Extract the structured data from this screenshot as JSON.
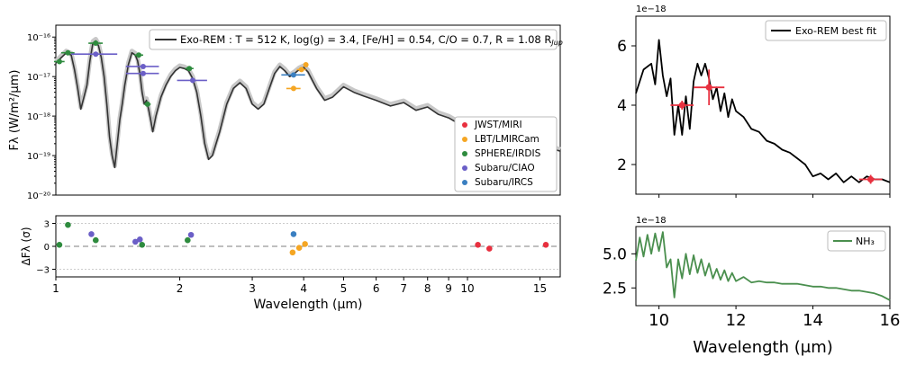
{
  "chart_data": [
    {
      "type": "line",
      "panel": "main-spectrum",
      "ylabel": "Fλ (W/m²/μm)",
      "yscale": "log",
      "xscale": "log",
      "xlim": [
        1,
        16.8
      ],
      "ylim": [
        1e-20,
        2e-16
      ],
      "yticklabels": [
        "10⁻¹⁶",
        "10⁻¹⁷",
        "10⁻¹⁸",
        "10⁻¹⁹",
        "10⁻²⁰"
      ],
      "yticks": [
        1e-16,
        1e-17,
        1e-18,
        1e-19,
        1e-20
      ],
      "model_legend": "Exo-REM : T = 512 K, log(g) = 3.4, [Fe/H] = 0.54, C/O = 0.7, R = 1.08 R",
      "model_legend_sub": "Jup",
      "legend": [
        "JWST/MIRI",
        "LBT/LMIRCam",
        "SPHERE/IRDIS",
        "Subaru/CIAO",
        "Subaru/IRCS"
      ],
      "legend_colors": [
        "#e8303f",
        "#f5a623",
        "#2e8b3e",
        "#6b5fc7",
        "#3a7fc1"
      ],
      "model_x": [
        1.0,
        1.03,
        1.06,
        1.09,
        1.11,
        1.13,
        1.15,
        1.17,
        1.19,
        1.21,
        1.23,
        1.25,
        1.27,
        1.29,
        1.31,
        1.33,
        1.35,
        1.37,
        1.39,
        1.41,
        1.43,
        1.45,
        1.47,
        1.5,
        1.53,
        1.56,
        1.58,
        1.6,
        1.62,
        1.64,
        1.66,
        1.68,
        1.7,
        1.72,
        1.75,
        1.8,
        1.85,
        1.9,
        1.95,
        2.0,
        2.05,
        2.1,
        2.15,
        2.2,
        2.25,
        2.3,
        2.35,
        2.4,
        2.5,
        2.6,
        2.7,
        2.8,
        2.9,
        3.0,
        3.1,
        3.2,
        3.3,
        3.4,
        3.5,
        3.6,
        3.7,
        3.8,
        3.9,
        4.0,
        4.1,
        4.2,
        4.3,
        4.5,
        4.7,
        5.0,
        5.3,
        5.6,
        6.0,
        6.5,
        7.0,
        7.5,
        8.0,
        8.5,
        9.0,
        9.5,
        10.0,
        10.5,
        11.0,
        11.5,
        12.0,
        13.0,
        14.0,
        15.0,
        16.0,
        16.8
      ],
      "model_y": [
        2.2e-17,
        3e-17,
        4e-17,
        3.5e-17,
        1.5e-17,
        5e-18,
        1.5e-18,
        3e-18,
        6e-18,
        2.5e-17,
        7e-17,
        8e-17,
        6e-17,
        3e-17,
        1e-17,
        2e-18,
        3e-19,
        1e-19,
        5e-20,
        2e-19,
        8e-19,
        2e-18,
        6e-18,
        2e-17,
        4e-17,
        3.5e-17,
        2.5e-17,
        1.2e-17,
        4e-18,
        2e-18,
        2.5e-18,
        1.5e-18,
        8e-19,
        4e-19,
        1e-18,
        3e-18,
        6e-18,
        1e-17,
        1.4e-17,
        1.7e-17,
        1.6e-17,
        1.4e-17,
        9e-18,
        4e-18,
        1e-18,
        2e-19,
        8e-20,
        1e-19,
        4e-19,
        2e-18,
        5e-18,
        7e-18,
        5e-18,
        2e-18,
        1.5e-18,
        2e-18,
        5e-18,
        1.2e-17,
        1.8e-17,
        1.4e-17,
        1e-17,
        1.2e-17,
        1.5e-17,
        1.7e-17,
        1.3e-17,
        8e-18,
        5e-18,
        2.5e-18,
        3e-18,
        5.5e-18,
        4e-18,
        3.2e-18,
        2.5e-18,
        1.8e-18,
        2.2e-18,
        1.4e-18,
        1.7e-18,
        1.1e-18,
        9e-19,
        6.5e-19,
        5e-19,
        4.5e-19,
        4.8e-19,
        3.8e-19,
        3.2e-19,
        2.7e-19,
        2e-19,
        1.7e-19,
        1.5e-19,
        1.3e-19
      ],
      "points": [
        {
          "inst": "SPHERE/IRDIS",
          "x": 1.02,
          "y": 2.4e-17,
          "xerr": 0.03
        },
        {
          "inst": "SPHERE/IRDIS",
          "x": 1.07,
          "y": 4e-17,
          "xerr": 0.04
        },
        {
          "inst": "SPHERE/IRDIS",
          "x": 1.25,
          "y": 7e-17,
          "xerr": 0.05
        },
        {
          "inst": "SPHERE/IRDIS",
          "x": 1.59,
          "y": 3.5e-17,
          "xerr": 0.04
        },
        {
          "inst": "SPHERE/IRDIS",
          "x": 1.67,
          "y": 2e-18,
          "xerr": 0.03
        },
        {
          "inst": "SPHERE/IRDIS",
          "x": 2.11,
          "y": 1.6e-17,
          "xerr": 0.05
        },
        {
          "inst": "Subaru/CIAO",
          "x": 1.25,
          "y": 3.7e-17,
          "xerr": 0.16
        },
        {
          "inst": "Subaru/CIAO",
          "x": 1.63,
          "y": 1.8e-17,
          "xerr": 0.15
        },
        {
          "inst": "Subaru/CIAO",
          "x": 1.63,
          "y": 1.2e-17,
          "xerr": 0.15
        },
        {
          "inst": "Subaru/CIAO",
          "x": 2.15,
          "y": 8e-18,
          "xerr": 0.18
        },
        {
          "inst": "Subaru/IRCS",
          "x": 3.78,
          "y": 1.1e-17,
          "xerr": 0.25
        },
        {
          "inst": "LBT/LMIRCam",
          "x": 3.78,
          "y": 5e-18,
          "xerr": 0.15
        },
        {
          "inst": "LBT/LMIRCam",
          "x": 3.95,
          "y": 1.5e-17,
          "xerr": 0.1
        },
        {
          "inst": "LBT/LMIRCam",
          "x": 4.05,
          "y": 2e-17,
          "xerr": 0.05
        },
        {
          "inst": "JWST/MIRI",
          "x": 10.6,
          "y": 4e-19,
          "xerr": 0.2
        },
        {
          "inst": "JWST/MIRI",
          "x": 11.3,
          "y": 4.6e-19,
          "xerr": 0.3
        },
        {
          "inst": "JWST/MIRI",
          "x": 15.5,
          "y": 1.5e-19,
          "xerr": 0.3
        }
      ]
    },
    {
      "type": "scatter",
      "panel": "residuals",
      "xlabel": "Wavelength  (μm)",
      "ylabel": "ΔFλ (σ)",
      "xscale": "log",
      "xlim": [
        1,
        16.8
      ],
      "ylim": [
        -4,
        4
      ],
      "yticks": [
        3,
        0,
        -3
      ],
      "xticks": [
        1,
        2,
        3,
        4,
        5,
        6,
        7,
        8,
        9,
        10,
        15
      ],
      "points": [
        {
          "inst": "SPHERE/IRDIS",
          "x": 1.02,
          "y": 0.2
        },
        {
          "inst": "SPHERE/IRDIS",
          "x": 1.07,
          "y": 2.8
        },
        {
          "inst": "SPHERE/IRDIS",
          "x": 1.25,
          "y": 0.8
        },
        {
          "inst": "Subaru/CIAO",
          "x": 1.22,
          "y": 1.6
        },
        {
          "inst": "Subaru/CIAO",
          "x": 1.56,
          "y": 0.6
        },
        {
          "inst": "Subaru/CIAO",
          "x": 1.6,
          "y": 0.9
        },
        {
          "inst": "SPHERE/IRDIS",
          "x": 1.62,
          "y": 0.2
        },
        {
          "inst": "SPHERE/IRDIS",
          "x": 2.09,
          "y": 0.8
        },
        {
          "inst": "Subaru/CIAO",
          "x": 2.13,
          "y": 1.5
        },
        {
          "inst": "Subaru/IRCS",
          "x": 3.78,
          "y": 1.6
        },
        {
          "inst": "LBT/LMIRCam",
          "x": 3.76,
          "y": -0.8
        },
        {
          "inst": "LBT/LMIRCam",
          "x": 3.9,
          "y": -0.2
        },
        {
          "inst": "LBT/LMIRCam",
          "x": 4.03,
          "y": 0.3
        },
        {
          "inst": "JWST/MIRI",
          "x": 10.6,
          "y": 0.2
        },
        {
          "inst": "JWST/MIRI",
          "x": 11.3,
          "y": -0.3
        },
        {
          "inst": "JWST/MIRI",
          "x": 15.5,
          "y": 0.2
        }
      ]
    },
    {
      "type": "line",
      "panel": "best-fit-zoom",
      "offset_label": "1e−18",
      "legend": [
        "Exo-REM best fit"
      ],
      "xlim": [
        9.4,
        16
      ],
      "ylim": [
        1.0,
        7.0
      ],
      "yticks": [
        2,
        4,
        6
      ],
      "x": [
        9.4,
        9.6,
        9.8,
        9.9,
        10.0,
        10.1,
        10.2,
        10.3,
        10.4,
        10.5,
        10.6,
        10.7,
        10.8,
        10.9,
        11.0,
        11.1,
        11.2,
        11.3,
        11.4,
        11.5,
        11.6,
        11.7,
        11.8,
        11.9,
        12.0,
        12.2,
        12.4,
        12.6,
        12.8,
        13.0,
        13.2,
        13.4,
        13.6,
        13.8,
        14.0,
        14.2,
        14.4,
        14.6,
        14.8,
        15.0,
        15.2,
        15.4,
        15.6,
        15.8,
        16.0
      ],
      "y": [
        4.4,
        5.2,
        5.4,
        4.7,
        6.2,
        5.0,
        4.3,
        4.9,
        3.0,
        4.0,
        3.0,
        4.3,
        3.2,
        4.8,
        5.4,
        5.0,
        5.4,
        4.9,
        4.2,
        4.6,
        3.8,
        4.4,
        3.6,
        4.2,
        3.8,
        3.6,
        3.2,
        3.1,
        2.8,
        2.7,
        2.5,
        2.4,
        2.2,
        2.0,
        1.6,
        1.7,
        1.5,
        1.7,
        1.4,
        1.6,
        1.4,
        1.6,
        1.5,
        1.5,
        1.4
      ],
      "points": [
        {
          "x": 10.6,
          "y": 4.0,
          "xerr": 0.3,
          "yerr": 0.15
        },
        {
          "x": 11.3,
          "y": 4.6,
          "xerr": 0.4,
          "yerr": 0.6
        },
        {
          "x": 15.5,
          "y": 1.5,
          "xerr": 0.3,
          "yerr": 0.15
        }
      ]
    },
    {
      "type": "line",
      "panel": "nh3-opacity",
      "offset_label": "1e−18",
      "legend": [
        "NH₃"
      ],
      "xlabel": "Wavelength (μm)",
      "xlim": [
        9.4,
        16
      ],
      "ylim": [
        1.2,
        7.0
      ],
      "yticks": [
        2.5,
        5.0
      ],
      "yticklabels": [
        "2.5",
        "5.0"
      ],
      "xticks": [
        10,
        12,
        14,
        16
      ],
      "x": [
        9.4,
        9.5,
        9.6,
        9.7,
        9.8,
        9.9,
        10.0,
        10.1,
        10.2,
        10.3,
        10.4,
        10.5,
        10.6,
        10.7,
        10.8,
        10.9,
        11.0,
        11.1,
        11.2,
        11.3,
        11.4,
        11.5,
        11.6,
        11.7,
        11.8,
        11.9,
        12.0,
        12.2,
        12.4,
        12.6,
        12.8,
        13.0,
        13.2,
        13.4,
        13.6,
        13.8,
        14.0,
        14.2,
        14.4,
        14.6,
        14.8,
        15.0,
        15.2,
        15.4,
        15.6,
        15.8,
        16.0
      ],
      "y": [
        4.5,
        6.2,
        4.8,
        6.4,
        5.0,
        6.5,
        5.2,
        6.6,
        4.0,
        4.6,
        1.8,
        4.6,
        3.2,
        5.0,
        3.5,
        4.9,
        3.6,
        4.6,
        3.4,
        4.3,
        3.2,
        3.9,
        3.1,
        3.8,
        3.0,
        3.6,
        3.0,
        3.3,
        2.9,
        3.0,
        2.9,
        2.9,
        2.8,
        2.8,
        2.8,
        2.7,
        2.6,
        2.6,
        2.5,
        2.5,
        2.4,
        2.3,
        2.3,
        2.2,
        2.1,
        1.9,
        1.6
      ]
    }
  ]
}
